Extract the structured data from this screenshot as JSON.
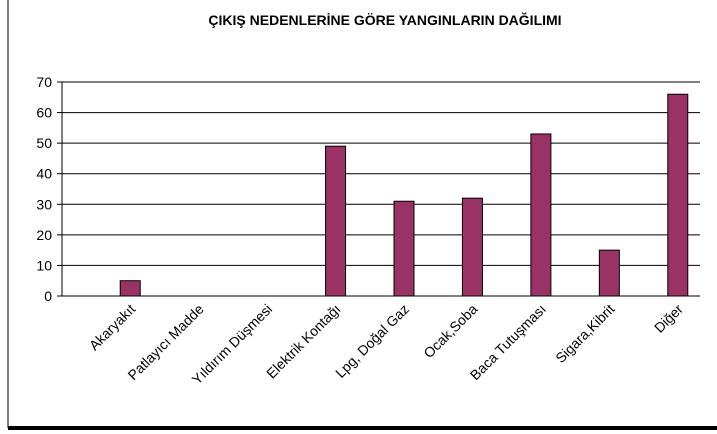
{
  "chart_data": {
    "type": "bar",
    "title": "ÇIKIŞ NEDENLERİNE GÖRE YANGINLARIN DAĞILIMI",
    "categories": [
      "Akaryakıt",
      "Patlayıcı Madde",
      "Yıldırım Düşmesi",
      "Elektrik Kontağı",
      "Lpg, Doğal Gaz",
      "Ocak,Soba",
      "Baca Tutuşması",
      "Sigara,Kibrit",
      "Diğer"
    ],
    "values": [
      5,
      0,
      0,
      49,
      31,
      32,
      53,
      15,
      66
    ],
    "color": "#993366",
    "ylim": [
      0,
      70
    ],
    "yticks": [
      0,
      10,
      20,
      30,
      40,
      50,
      60,
      70
    ],
    "grid": true
  }
}
